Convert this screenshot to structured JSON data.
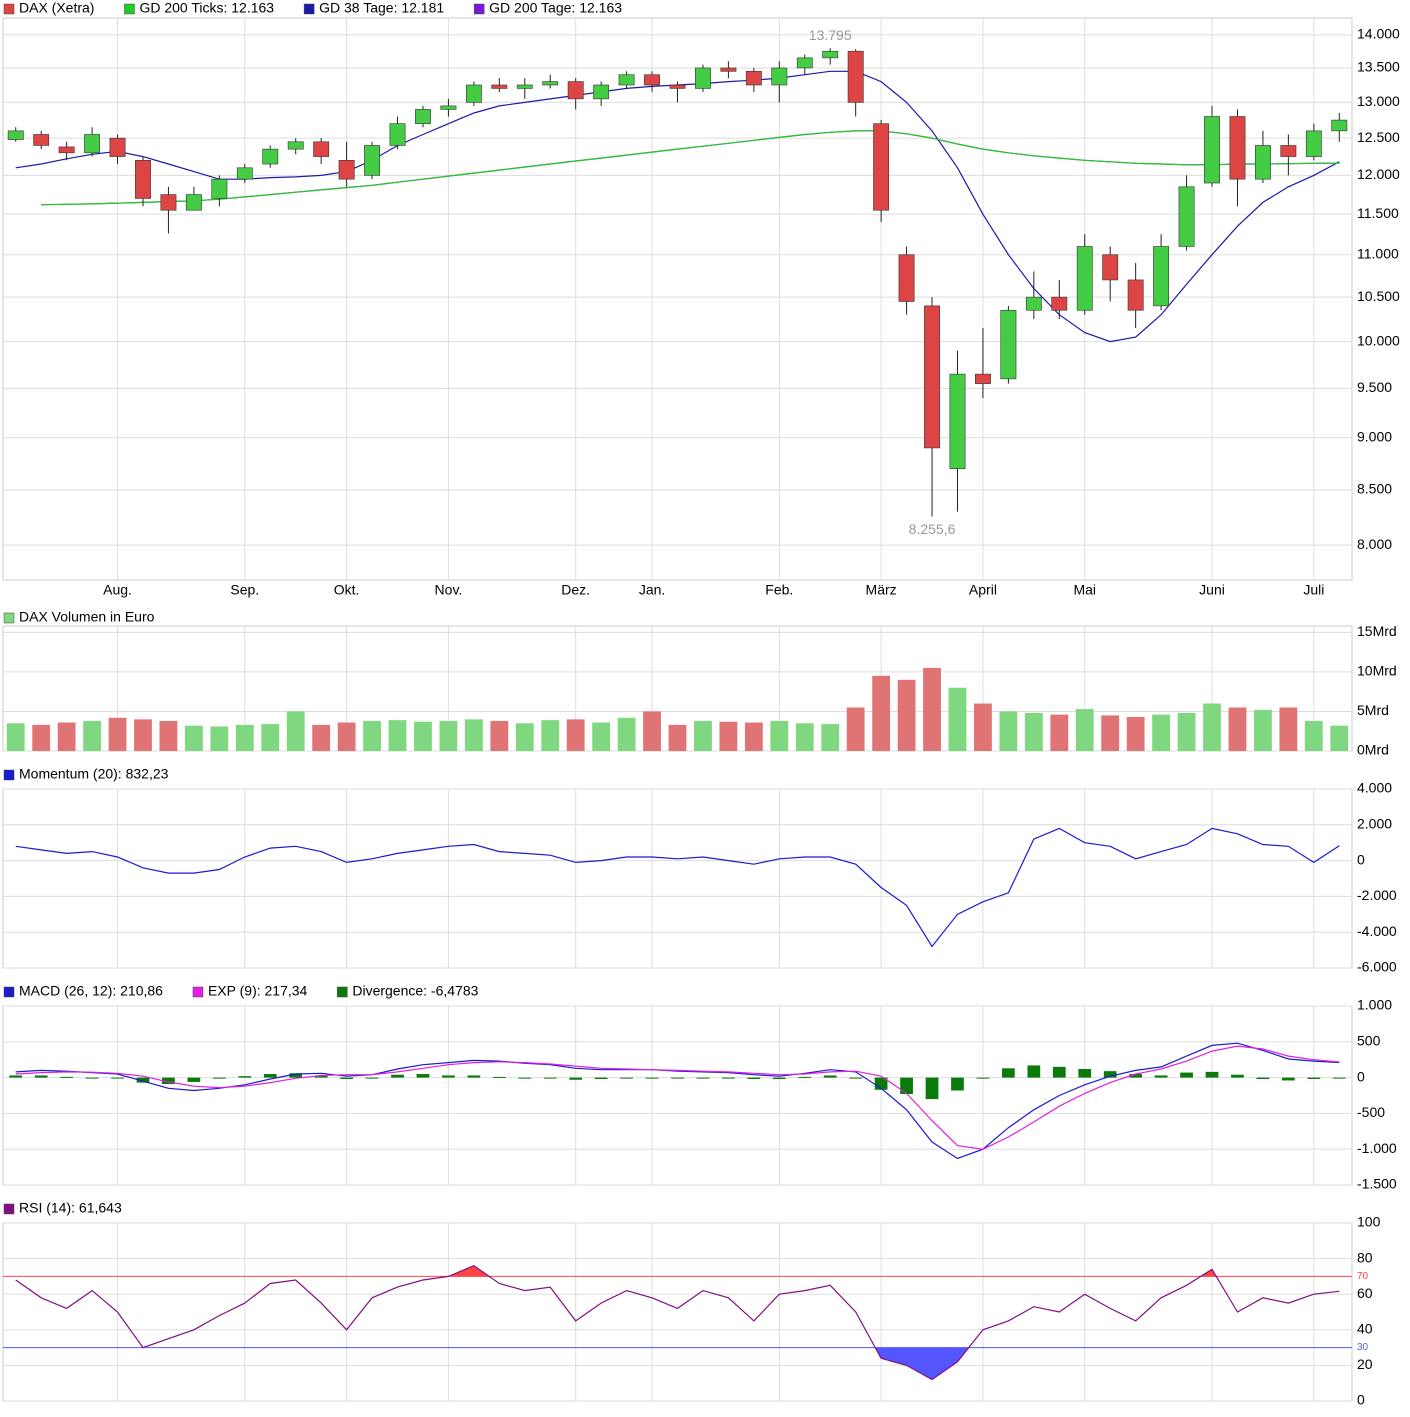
{
  "chart_data": [
    {
      "type": "candlestick",
      "name": "DAX (Xetra)",
      "up_color": "#44cc44",
      "down_color": "#dd4444",
      "log_scale": true,
      "grid": true,
      "categories": [
        null,
        null,
        null,
        null,
        "Aug.",
        null,
        null,
        null,
        null,
        "Sep.",
        null,
        null,
        null,
        "Okt.",
        null,
        null,
        null,
        "Nov.",
        null,
        null,
        null,
        null,
        "Dez.",
        null,
        null,
        "Jan.",
        null,
        null,
        null,
        null,
        "Feb.",
        null,
        null,
        null,
        "März",
        null,
        null,
        null,
        "April",
        null,
        null,
        null,
        "Mai",
        null,
        null,
        null,
        null,
        "Juni",
        null,
        null,
        null,
        "Juli",
        null
      ],
      "open": [
        12480,
        12550,
        12380,
        12300,
        12500,
        12200,
        11750,
        11550,
        11700,
        11950,
        12150,
        12350,
        12450,
        12200,
        12000,
        12400,
        12700,
        12900,
        13000,
        13250,
        13200,
        13250,
        13300,
        13050,
        13250,
        13400,
        13250,
        13200,
        13500,
        13450,
        13250,
        13500,
        13650,
        13750,
        12700,
        11000,
        10400,
        8700,
        9650,
        9600,
        10350,
        10500,
        10350,
        11000,
        10700,
        10400,
        11100,
        11900,
        12800,
        11950,
        12400,
        12250,
        12600
      ],
      "high": [
        12650,
        12600,
        12450,
        12650,
        12550,
        12250,
        11850,
        11850,
        12000,
        12150,
        12400,
        12500,
        12500,
        12450,
        12450,
        12800,
        12950,
        13050,
        13300,
        13350,
        13350,
        13400,
        13350,
        13300,
        13450,
        13450,
        13300,
        13550,
        13600,
        13500,
        13600,
        13700,
        13795,
        13780,
        12750,
        11100,
        10500,
        9900,
        10150,
        10400,
        10800,
        10700,
        11250,
        11100,
        10900,
        11250,
        12000,
        12950,
        12900,
        12600,
        12550,
        12700,
        12850
      ],
      "low": [
        12450,
        12350,
        12200,
        12250,
        12150,
        11600,
        11260,
        11550,
        11600,
        11900,
        12100,
        12280,
        12150,
        11850,
        11950,
        12350,
        12650,
        12800,
        12950,
        13150,
        13050,
        13200,
        12900,
        12950,
        13200,
        13150,
        13000,
        13150,
        13350,
        13150,
        13000,
        13400,
        13550,
        12800,
        11400,
        10300,
        8255.6,
        8300,
        9400,
        9550,
        10250,
        10250,
        10300,
        10450,
        10150,
        10350,
        11050,
        11850,
        11600,
        11900,
        12000,
        12200,
        12450
      ],
      "close": [
        12600,
        12400,
        12300,
        12550,
        12250,
        11700,
        11550,
        11750,
        11950,
        12100,
        12350,
        12450,
        12250,
        11950,
        12400,
        12700,
        12900,
        12950,
        13250,
        13200,
        13250,
        13300,
        13050,
        13250,
        13400,
        13250,
        13200,
        13500,
        13450,
        13250,
        13500,
        13650,
        13750,
        13000,
        11550,
        10450,
        8900,
        9650,
        9550,
        10350,
        10500,
        10350,
        11100,
        10700,
        10350,
        11100,
        11850,
        12800,
        11950,
        12400,
        12250,
        12600,
        12750
      ],
      "series": [
        {
          "name": "GD 200 Ticks: 12.163",
          "color": "#22cc22",
          "values": [
            null,
            11620,
            11625,
            11630,
            11640,
            11650,
            11660,
            11670,
            11690,
            11720,
            11750,
            11780,
            11810,
            11840,
            11870,
            11910,
            11950,
            11990,
            12030,
            12070,
            12110,
            12150,
            12190,
            12230,
            12270,
            12310,
            12350,
            12390,
            12430,
            12470,
            12510,
            12550,
            12580,
            12600,
            12600,
            12560,
            12500,
            12420,
            12350,
            12300,
            12260,
            12230,
            12200,
            12180,
            12160,
            12150,
            12140,
            12140,
            12150,
            12150,
            12155,
            12160,
            12163
          ]
        },
        {
          "name": "GD 38 Tage: 12.181",
          "color": "#1a1aa8",
          "values": [
            12100,
            12150,
            12220,
            12280,
            12320,
            12250,
            12150,
            12050,
            11950,
            11950,
            11970,
            11980,
            12000,
            12050,
            12200,
            12400,
            12550,
            12700,
            12850,
            12950,
            13000,
            13050,
            13100,
            13150,
            13200,
            13230,
            13250,
            13270,
            13300,
            13320,
            13350,
            13400,
            13450,
            13450,
            13300,
            13000,
            12600,
            12100,
            11500,
            11000,
            10600,
            10300,
            10100,
            10000,
            10050,
            10300,
            10650,
            11000,
            11350,
            11650,
            11850,
            12000,
            12181
          ]
        },
        {
          "name": "GD 200 Tage: 12.163",
          "color": "#7a1ad8",
          "values": [
            null,
            11620,
            11625,
            11630,
            11640,
            11650,
            11660,
            11670,
            11690,
            11720,
            11750,
            11780,
            11810,
            11840,
            11870,
            11910,
            11950,
            11990,
            12030,
            12070,
            12110,
            12150,
            12190,
            12230,
            12270,
            12310,
            12350,
            12390,
            12430,
            12470,
            12510,
            12550,
            12580,
            12600,
            12600,
            12560,
            12500,
            12420,
            12350,
            12300,
            12260,
            12230,
            12200,
            12180,
            12160,
            12150,
            12140,
            12140,
            12150,
            12150,
            12155,
            12160,
            12163
          ]
        }
      ],
      "annotations": [
        {
          "value": 13795,
          "label": "13.795"
        },
        {
          "value": 8255.6,
          "label": "8.255,6"
        }
      ],
      "ylim": [
        7700,
        14260
      ],
      "yticks": [
        {
          "value": 8000,
          "label": "8.000"
        },
        {
          "value": 8500,
          "label": "8.500"
        },
        {
          "value": 9000,
          "label": "9.000"
        },
        {
          "value": 9500,
          "label": "9.500"
        },
        {
          "value": 10000,
          "label": "10.000"
        },
        {
          "value": 10500,
          "label": "10.500"
        },
        {
          "value": 11000,
          "label": "11.000"
        },
        {
          "value": 11500,
          "label": "11.500"
        },
        {
          "value": 12000,
          "label": "12.000"
        },
        {
          "value": 12500,
          "label": "12.500"
        },
        {
          "value": 13000,
          "label": "13.000"
        },
        {
          "value": 13500,
          "label": "13.500"
        },
        {
          "value": 14000,
          "label": "14.000"
        }
      ]
    },
    {
      "type": "bar",
      "name": "DAX Volumen in Euro",
      "up_color": "#7fd87f",
      "down_color": "#e07474",
      "grid": true,
      "values": [
        3.5,
        3.3,
        3.6,
        3.8,
        4.2,
        4.0,
        3.8,
        3.2,
        3.1,
        3.3,
        3.4,
        5.0,
        3.3,
        3.6,
        3.8,
        3.9,
        3.7,
        3.8,
        4.0,
        3.8,
        3.5,
        3.9,
        4.0,
        3.6,
        4.2,
        5.0,
        3.3,
        3.8,
        3.7,
        3.6,
        3.8,
        3.5,
        3.4,
        5.5,
        9.5,
        9.0,
        10.5,
        8.0,
        6.0,
        5.0,
        4.8,
        4.6,
        5.3,
        4.5,
        4.3,
        4.6,
        4.8,
        6.0,
        5.5,
        5.2,
        5.5,
        3.8,
        3.2
      ],
      "ylim": [
        0,
        15.8
      ],
      "yticks": [
        {
          "value": 0,
          "label": "0Mrd"
        },
        {
          "value": 5,
          "label": "5Mrd"
        },
        {
          "value": 10,
          "label": "10Mrd"
        },
        {
          "value": 15,
          "label": "15Mrd"
        }
      ]
    },
    {
      "type": "line",
      "grid": true,
      "series": [
        {
          "name": "Momentum (20): 832,23",
          "color": "#1a1ad0",
          "values": [
            800,
            600,
            400,
            500,
            200,
            -400,
            -700,
            -700,
            -500,
            200,
            700,
            800,
            500,
            -100,
            100,
            400,
            600,
            800,
            900,
            500,
            400,
            300,
            -100,
            0,
            200,
            200,
            100,
            200,
            0,
            -200,
            100,
            200,
            200,
            -200,
            -1500,
            -2500,
            -4800,
            -3000,
            -2300,
            -1800,
            1200,
            1800,
            1000,
            800,
            100,
            500,
            900,
            1800,
            1500,
            900,
            800,
            -100,
            832.23
          ]
        }
      ],
      "ylim": [
        -6000,
        4000
      ],
      "yticks": [
        {
          "value": -6000,
          "label": "-6.000"
        },
        {
          "value": -4000,
          "label": "-4.000"
        },
        {
          "value": -2000,
          "label": "-2.000"
        },
        0,
        {
          "value": 2000,
          "label": "2.000"
        },
        {
          "value": 4000,
          "label": "4.000"
        }
      ]
    },
    {
      "type": "line",
      "grid": true,
      "series": [
        {
          "name": "MACD (26, 12): 210,86",
          "color": "#1a1ad0",
          "values": [
            80,
            100,
            90,
            70,
            50,
            -50,
            -150,
            -180,
            -150,
            -100,
            -20,
            50,
            60,
            20,
            40,
            120,
            180,
            210,
            240,
            230,
            200,
            180,
            130,
            110,
            110,
            110,
            90,
            80,
            70,
            40,
            20,
            60,
            110,
            80,
            -150,
            -450,
            -900,
            -1130,
            -1000,
            -700,
            -450,
            -250,
            -100,
            20,
            100,
            150,
            300,
            450,
            480,
            380,
            260,
            230,
            210.86
          ]
        },
        {
          "name": "EXP (9): 217,34",
          "color": "#e020e0",
          "values": [
            50,
            70,
            80,
            75,
            60,
            20,
            -60,
            -120,
            -140,
            -120,
            -70,
            -10,
            30,
            40,
            40,
            80,
            130,
            180,
            210,
            220,
            210,
            190,
            160,
            130,
            120,
            110,
            100,
            90,
            80,
            60,
            40,
            50,
            80,
            90,
            20,
            -220,
            -600,
            -950,
            -1000,
            -830,
            -620,
            -400,
            -220,
            -70,
            50,
            120,
            230,
            370,
            440,
            400,
            300,
            250,
            217.34
          ]
        },
        {
          "name": "Divergence: -6,4783",
          "color": "#0a7a0a",
          "type": "bar",
          "values": [
            30,
            30,
            10,
            -5,
            -10,
            -70,
            -90,
            -60,
            -10,
            20,
            50,
            60,
            30,
            -20,
            0,
            40,
            50,
            30,
            30,
            10,
            -10,
            -10,
            -30,
            -20,
            -10,
            0,
            -10,
            -10,
            -10,
            -20,
            -20,
            10,
            30,
            -10,
            -170,
            -230,
            -300,
            -180,
            0,
            130,
            170,
            150,
            120,
            90,
            50,
            30,
            70,
            80,
            40,
            -20,
            -40,
            -20,
            -6.4783
          ]
        }
      ],
      "ylim": [
        -1500,
        1000
      ],
      "yticks": [
        {
          "value": -1500,
          "label": "-1.500"
        },
        {
          "value": -1000,
          "label": "-1.000"
        },
        -500,
        0,
        500,
        {
          "value": 1000,
          "label": "1.000"
        }
      ]
    },
    {
      "type": "line",
      "grid": true,
      "series": [
        {
          "name": "RSI (14): 61,643",
          "color": "#801080",
          "values": [
            68,
            58,
            52,
            62,
            50,
            30,
            35,
            40,
            48,
            55,
            66,
            68,
            55,
            40,
            58,
            64,
            68,
            70,
            76,
            66,
            62,
            64,
            45,
            55,
            62,
            58,
            52,
            62,
            58,
            45,
            60,
            62,
            65,
            50,
            24,
            20,
            12,
            22,
            40,
            45,
            53,
            50,
            60,
            52,
            45,
            58,
            65,
            74,
            50,
            58,
            55,
            60,
            61.643
          ]
        }
      ],
      "levels": [
        {
          "value": 70,
          "color": "#ff4444"
        },
        {
          "value": 30,
          "color": "#5555ff"
        }
      ],
      "ylim": [
        0,
        100
      ],
      "yticks": [
        0,
        20,
        40,
        60,
        80,
        100
      ]
    }
  ]
}
